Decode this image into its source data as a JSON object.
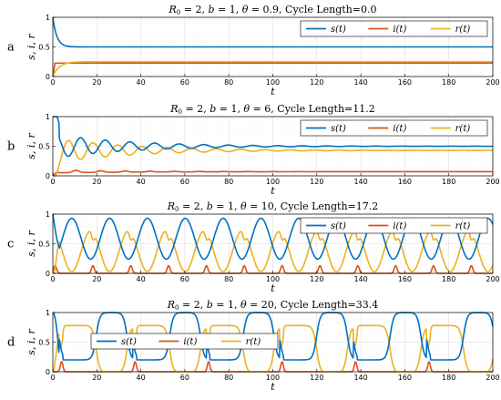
{
  "chart_data": [
    {
      "id": "a",
      "type": "line",
      "letter": "a",
      "title": "R_0 = 2, b = 1, θ = 0.9, Cycle Length=0.0",
      "title_parts": [
        "R",
        "0",
        " = 2, ",
        "b",
        " = 1, ",
        "θ",
        " = 0.9, Cycle Length=0.0"
      ],
      "theta": 0.9,
      "cycle_length": 0.0,
      "xlabel": "t",
      "ylabel": "s, i, r",
      "xlim": [
        0,
        200
      ],
      "ylim": [
        0,
        1
      ],
      "xticks": [
        0,
        20,
        40,
        60,
        80,
        100,
        120,
        140,
        160,
        180,
        200
      ],
      "yticks": [
        0,
        0.5,
        1
      ],
      "ytick_labels": [
        "0",
        "0.5",
        "1"
      ],
      "grid": true,
      "legend_position": "top-right",
      "series": [
        {
          "name": "s(t)",
          "color": "#0072bd",
          "equilibrium": 0.5
        },
        {
          "name": "i(t)",
          "color": "#d95319",
          "equilibrium": 0.227
        },
        {
          "name": "r(t)",
          "color": "#edb120",
          "equilibrium": 0.25
        }
      ]
    },
    {
      "id": "b",
      "type": "line",
      "letter": "b",
      "title": "R_0 = 2, b = 1, θ = 6, Cycle Length=11.2",
      "title_parts": [
        "R",
        "0",
        " = 2, ",
        "b",
        " = 1, ",
        "θ",
        " = 6, Cycle Length=11.2"
      ],
      "theta": 6,
      "cycle_length": 11.2,
      "xlabel": "t",
      "ylabel": "s, i, r",
      "xlim": [
        0,
        200
      ],
      "ylim": [
        0,
        1
      ],
      "xticks": [
        0,
        20,
        40,
        60,
        80,
        100,
        120,
        140,
        160,
        180,
        200
      ],
      "yticks": [
        0,
        0.5,
        1
      ],
      "ytick_labels": [
        "0",
        "0.5",
        "1"
      ],
      "grid": true,
      "legend_position": "top-right",
      "series": [
        {
          "name": "s(t)",
          "color": "#0072bd",
          "equilibrium": 0.5
        },
        {
          "name": "i(t)",
          "color": "#d95319",
          "equilibrium": 0.07
        },
        {
          "name": "r(t)",
          "color": "#edb120",
          "equilibrium": 0.43
        }
      ]
    },
    {
      "id": "c",
      "type": "line",
      "letter": "c",
      "title": "R_0 = 2, b = 1, θ = 10, Cycle Length=17.2",
      "title_parts": [
        "R",
        "0",
        " = 2, ",
        "b",
        " = 1, ",
        "θ",
        " = 10, Cycle Length=17.2"
      ],
      "theta": 10,
      "cycle_length": 17.2,
      "xlabel": "t",
      "ylabel": "s, i, r",
      "xlim": [
        0,
        200
      ],
      "ylim": [
        0,
        1
      ],
      "xticks": [
        0,
        20,
        40,
        60,
        80,
        100,
        120,
        140,
        160,
        180,
        200
      ],
      "yticks": [
        0,
        0.5,
        1
      ],
      "ytick_labels": [
        "0",
        "0.5",
        "1"
      ],
      "grid": true,
      "legend_position": "top-right",
      "series": [
        {
          "name": "s(t)",
          "color": "#0072bd"
        },
        {
          "name": "i(t)",
          "color": "#d95319"
        },
        {
          "name": "r(t)",
          "color": "#edb120"
        }
      ]
    },
    {
      "id": "d",
      "type": "line",
      "letter": "d",
      "title": "R_0 = 2, b = 1, θ = 20, Cycle Length=33.4",
      "title_parts": [
        "R",
        "0",
        " = 2, ",
        "b",
        " = 1, ",
        "θ",
        " = 20, Cycle Length=33.4"
      ],
      "theta": 20,
      "cycle_length": 33.4,
      "xlabel": "t",
      "ylabel": "s, i, r",
      "xlim": [
        0,
        200
      ],
      "ylim": [
        0,
        1
      ],
      "xticks": [
        0,
        20,
        40,
        60,
        80,
        100,
        120,
        140,
        160,
        180,
        200
      ],
      "yticks": [
        0,
        0.5,
        1
      ],
      "ytick_labels": [
        "0",
        "0.5",
        "1"
      ],
      "grid": true,
      "legend_position": "center-left",
      "series": [
        {
          "name": "s(t)",
          "color": "#0072bd"
        },
        {
          "name": "i(t)",
          "color": "#d95319"
        },
        {
          "name": "r(t)",
          "color": "#edb120"
        }
      ]
    }
  ]
}
